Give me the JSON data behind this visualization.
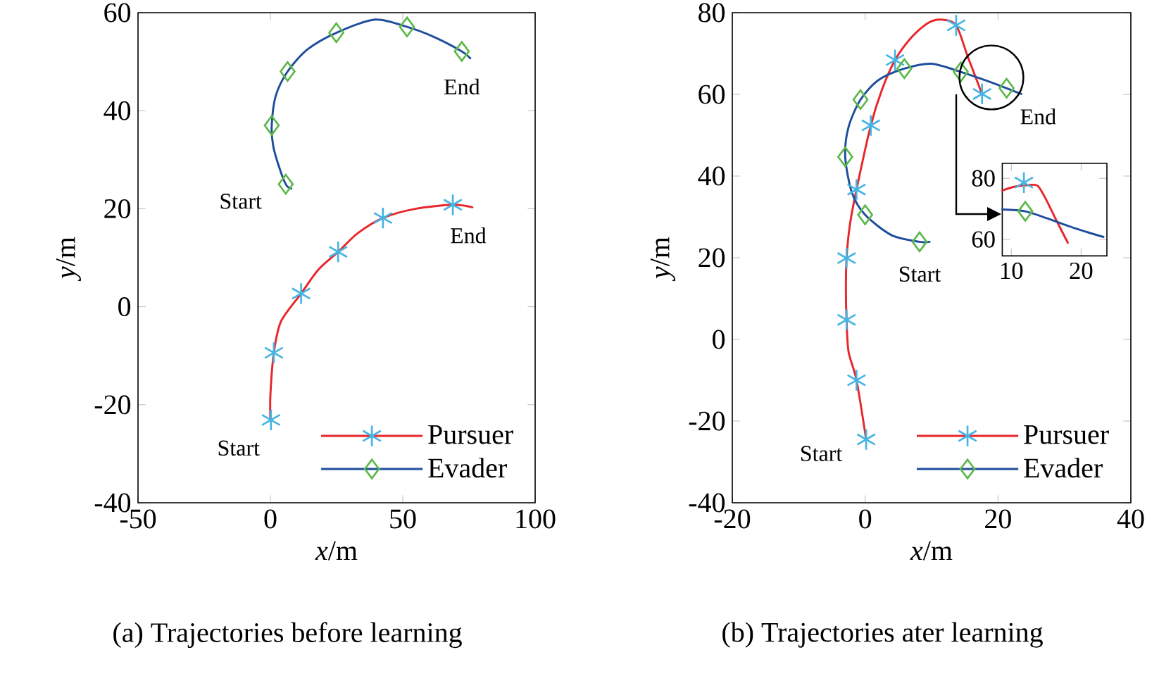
{
  "chart_data": [
    {
      "type": "line",
      "title": "(a) Trajectories before learning",
      "xlabel": "*x*/m",
      "ylabel": "*y*/m",
      "xlim": [
        -50,
        100
      ],
      "xticks": [
        -50,
        0,
        50,
        100
      ],
      "ylim": [
        -40,
        60
      ],
      "yticks": [
        -40,
        -20,
        0,
        20,
        40,
        60
      ],
      "legend": "bottom right",
      "series": [
        {
          "name": "Pursuer",
          "color": "#e8262b",
          "x": [
            0,
            0,
            1.3,
            4,
            11.6,
            18,
            25.6,
            33,
            42.5,
            55,
            68.9,
            76.3
          ],
          "values": [
            -23,
            -18,
            -9.4,
            -3,
            2.7,
            7.5,
            11.2,
            15,
            18.1,
            20,
            20.8,
            20.3
          ]
        },
        {
          "type": "scatter",
          "marker": "cross",
          "color": "#45b5e3",
          "x": [
            0.2,
            1.3,
            11.6,
            25.6,
            42.5,
            68.9
          ],
          "values": [
            -23.1,
            -9.4,
            2.7,
            11.2,
            18.1,
            20.8
          ]
        },
        {
          "name": "Evader",
          "color": "#1f4e9c",
          "x": [
            7.9,
            5.8,
            3,
            1,
            0.5,
            2,
            6.5,
            14,
            24.9,
            39.5,
            51.6,
            62,
            72.3,
            75.5
          ],
          "values": [
            24.1,
            25,
            29,
            33,
            37,
            43,
            48,
            52.5,
            55.9,
            58.6,
            57.1,
            55,
            52.1,
            50.7
          ]
        },
        {
          "type": "scatter",
          "marker": "diamond",
          "color": "#5cb849",
          "x": [
            5.8,
            0.5,
            6.5,
            24.9,
            51.6,
            72.3
          ],
          "values": [
            25,
            37,
            48,
            55.9,
            57.1,
            52.1
          ]
        }
      ],
      "annotations": [
        {
          "text": "Start",
          "x": 7.9,
          "y": 24.1
        },
        {
          "text": "End",
          "x": 72.3,
          "y": 52.1
        },
        {
          "text": "End",
          "x": 76.3,
          "y": 20.3
        },
        {
          "text": "Start",
          "x": 0.2,
          "y": -23.1
        }
      ]
    },
    {
      "type": "line",
      "title": "(b) Trajectories ater learning",
      "xlabel": "*x*/m",
      "ylabel": "*y*/m",
      "xlim": [
        -20,
        40
      ],
      "xticks": [
        -20,
        0,
        20,
        40
      ],
      "ylim": [
        -40,
        80
      ],
      "yticks": [
        -40,
        -20,
        0,
        20,
        40,
        60,
        80
      ],
      "legend": "bottom right",
      "series": [
        {
          "name": "Pursuer",
          "color": "#e8262b",
          "x": [
            0.15,
            -1.3,
            -2.5,
            -2.8,
            -2.9,
            -2.8,
            -2.3,
            -1.3,
            0.85,
            2.5,
            4.5,
            7,
            9.5,
            11.5,
            13.7,
            15.5,
            17.6
          ],
          "values": [
            -24.5,
            -10,
            -3,
            4.8,
            12,
            19.9,
            28,
            36.7,
            52.4,
            61,
            68.4,
            74,
            77.5,
            78.3,
            76.9,
            69,
            60.1
          ]
        },
        {
          "type": "scatter",
          "marker": "cross",
          "color": "#45b5e3",
          "x": [
            0.15,
            -1.3,
            -2.8,
            -2.8,
            -1.3,
            0.85,
            4.5,
            13.7,
            17.6
          ],
          "values": [
            -24.5,
            -10,
            4.8,
            19.9,
            36.7,
            52.4,
            68.4,
            76.9,
            60.1
          ]
        },
        {
          "name": "Evader",
          "color": "#1f4e9c",
          "x": [
            9.7,
            8.2,
            4,
            0,
            -2,
            -3,
            -2.5,
            -0.7,
            2,
            5.9,
            10,
            14.4,
            18,
            21.3,
            23.5
          ],
          "values": [
            23.9,
            23.9,
            25.5,
            30.5,
            36,
            44.7,
            52,
            58.7,
            63.5,
            66.3,
            67.5,
            65.5,
            63.5,
            61.5,
            60.1
          ]
        },
        {
          "type": "scatter",
          "marker": "diamond",
          "color": "#5cb849",
          "x": [
            8.2,
            0,
            -3,
            -0.7,
            5.9,
            14.4,
            21.3
          ],
          "values": [
            23.9,
            30.5,
            44.7,
            58.7,
            66.3,
            65.5,
            61.5
          ]
        }
      ],
      "annotations": [
        {
          "text": "Start",
          "x": 0.15,
          "y": -24.5
        },
        {
          "text": "Start",
          "x": 8.2,
          "y": 23.9
        },
        {
          "text": "End",
          "x": 23.5,
          "y": 60.1
        }
      ]
    },
    {
      "type": "line",
      "xlim": [
        8.7,
        23.7
      ],
      "xticks": [
        10,
        20
      ],
      "ylim": [
        54.6,
        84.9
      ],
      "yticks": [
        60,
        80
      ],
      "series": [
        {
          "color": "#e8262b",
          "x": [
            8.7,
            10.5,
            12.5,
            13.8,
            15,
            16.5,
            18.1
          ],
          "values": [
            76,
            77.3,
            77.8,
            77.5,
            73,
            66,
            58.9
          ]
        },
        {
          "type": "scatter",
          "marker": "cross",
          "color": "#45b5e3",
          "x": [
            11.8
          ],
          "values": [
            78.6
          ]
        },
        {
          "color": "#1f4e9c",
          "x": [
            8.7,
            12,
            15,
            18,
            21,
            23.2
          ],
          "values": [
            69.8,
            69.2,
            67,
            64.5,
            62.3,
            60.8
          ]
        },
        {
          "type": "scatter",
          "marker": "diamond",
          "color": "#5cb849",
          "x": [
            12
          ],
          "values": [
            69.2
          ]
        }
      ]
    }
  ]
}
